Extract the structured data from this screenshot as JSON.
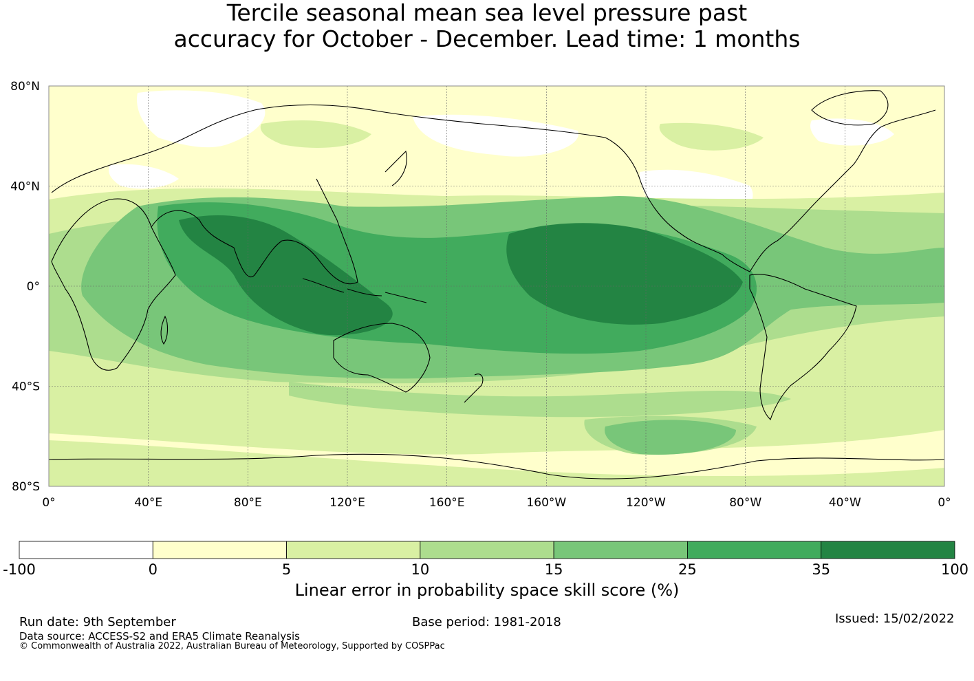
{
  "title_line1": "Tercile seasonal mean sea level pressure past",
  "title_line2": "accuracy for October - December. Lead time: 1 months",
  "map": {
    "lat_labels": [
      "80°N",
      "40°N",
      "0°",
      "40°S",
      "80°S"
    ],
    "lon_labels": [
      "0°",
      "40°E",
      "80°E",
      "120°E",
      "160°E",
      "160°W",
      "120°W",
      "80°W",
      "40°W",
      "0°"
    ],
    "coastline_color": "#000000",
    "gridline_color": "#666666"
  },
  "colorbar": {
    "tick_labels": [
      "-100",
      "0",
      "5",
      "10",
      "15",
      "25",
      "35",
      "100"
    ],
    "colors": [
      "#ffffff",
      "#ffffcc",
      "#d9f0a3",
      "#addd8e",
      "#78c679",
      "#41ab5d",
      "#238443"
    ],
    "title": "Linear error in probability space skill score (%)"
  },
  "footer": {
    "run_date": "Run date: 9th September",
    "data_source": "Data source: ACCESS-S2 and ERA5 Climate Reanalysis",
    "copyright": "© Commonwealth of Australia 2022, Australian Bureau of Meteorology, Supported by COSPPac",
    "base_period": "Base period: 1981-2018",
    "issued": "Issued: 15/02/2022"
  }
}
